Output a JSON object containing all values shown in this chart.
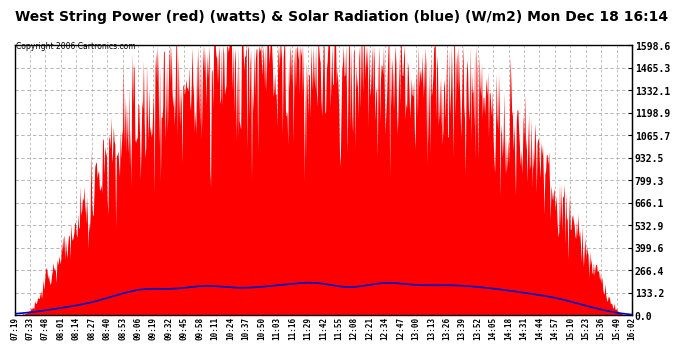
{
  "title": "West String Power (red) (watts) & Solar Radiation (blue) (W/m2) Mon Dec 18 16:14",
  "copyright": "Copyright 2006 Cartronics.com",
  "ylabel_right_values": [
    0.0,
    133.2,
    266.4,
    399.6,
    532.9,
    666.1,
    799.3,
    932.5,
    1065.7,
    1198.9,
    1332.1,
    1465.3,
    1598.6
  ],
  "y_max": 1598.6,
  "y_min": 0.0,
  "background_color": "#ffffff",
  "plot_background": "#ffffff",
  "grid_color": "#aaaaaa",
  "red_color": "#ff0000",
  "blue_color": "#0000cc",
  "title_fontsize": 10,
  "x_labels": [
    "07:19",
    "07:33",
    "07:48",
    "08:01",
    "08:14",
    "08:27",
    "08:40",
    "08:53",
    "09:06",
    "09:19",
    "09:32",
    "09:45",
    "09:58",
    "10:11",
    "10:24",
    "10:37",
    "10:50",
    "11:03",
    "11:16",
    "11:29",
    "11:42",
    "11:55",
    "12:08",
    "12:21",
    "12:34",
    "12:47",
    "13:00",
    "13:13",
    "13:26",
    "13:39",
    "13:52",
    "14:05",
    "14:18",
    "14:31",
    "14:44",
    "14:57",
    "15:10",
    "15:23",
    "15:36",
    "15:49",
    "16:02"
  ],
  "red_base": [
    30,
    80,
    200,
    350,
    520,
    700,
    880,
    1020,
    1150,
    1250,
    1320,
    1380,
    1430,
    1460,
    1480,
    1490,
    1490,
    1480,
    1470,
    1460,
    1450,
    1440,
    1440,
    1430,
    1420,
    1400,
    1380,
    1360,
    1330,
    1290,
    1240,
    1170,
    1080,
    970,
    840,
    690,
    530,
    360,
    200,
    80,
    15
  ],
  "blue_base": [
    10,
    18,
    30,
    45,
    60,
    80,
    105,
    128,
    148,
    158,
    162,
    165,
    168,
    170,
    172,
    174,
    175,
    177,
    178,
    180,
    182,
    183,
    184,
    185,
    185,
    184,
    183,
    181,
    178,
    174,
    168,
    160,
    150,
    138,
    122,
    104,
    82,
    58,
    35,
    16,
    5
  ],
  "blue_wiggles": [
    0,
    0,
    0,
    0,
    2,
    3,
    4,
    5,
    6,
    8,
    10,
    12,
    14,
    15,
    16,
    17,
    18,
    19,
    20,
    20,
    19,
    18,
    17,
    16,
    15,
    14,
    12,
    10,
    9,
    8,
    7,
    6,
    5,
    4,
    3,
    2,
    1,
    0,
    0,
    0,
    0
  ]
}
